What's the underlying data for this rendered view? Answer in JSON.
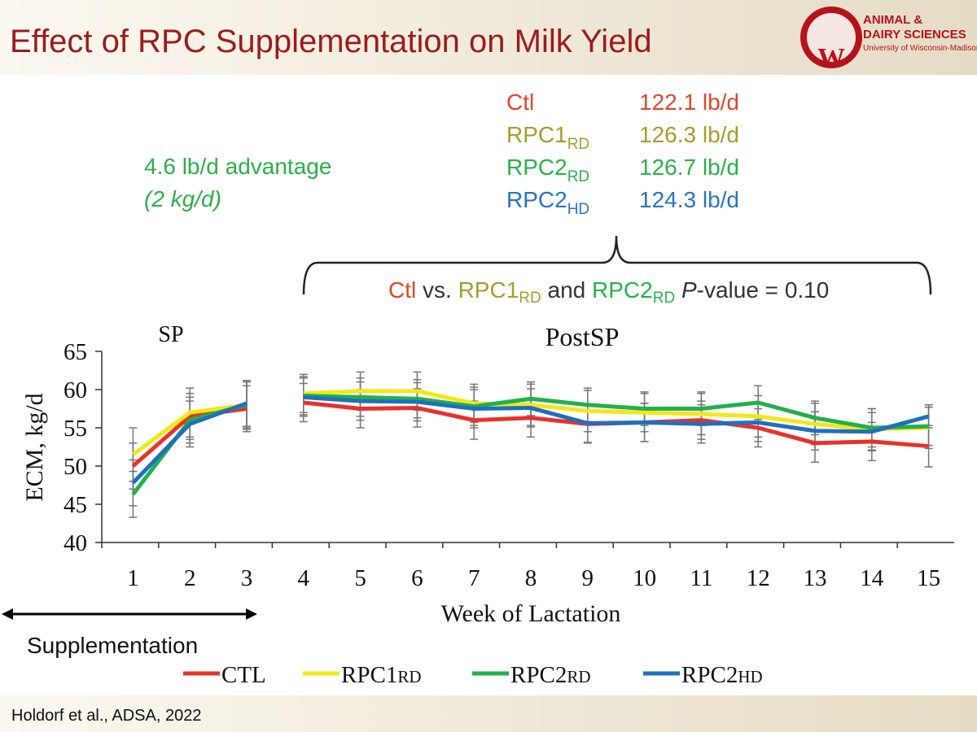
{
  "slide": {
    "title": "Effect of RPC Supplementation on Milk Yield",
    "logo": {
      "line1": "ANIMAL &",
      "line2": "DAIRY SCIENCES",
      "line3": "University of Wisconsin-Madison",
      "mark": "W"
    },
    "advantage": {
      "line1": "4.6 lb/d advantage",
      "line2": "(2 kg/d)"
    },
    "yields": [
      {
        "label": "Ctl",
        "value": "122.1 lb/d",
        "color": "#e0462c"
      },
      {
        "label": "RPC1",
        "sub": "RD",
        "value": "126.3 lb/d",
        "color": "#a89c2c"
      },
      {
        "label": "RPC2",
        "sub": "RD",
        "value": "126.7 lb/d",
        "color": "#2cb04a"
      },
      {
        "label": "RPC2",
        "sub": "HD",
        "value": "124.3 lb/d",
        "color": "#2a73c0"
      }
    ],
    "pvalue": {
      "ctl": "Ctl",
      "vs": "vs.",
      "rpc1": "RPC1",
      "rpc1_sub": "RD",
      "and": "and",
      "rpc2": "RPC2",
      "rpc2_sub": "RD",
      "p": "P",
      "rest": "-value = 0.10"
    },
    "supplementation": "Supplementation",
    "footer": "Holdorf et al., ADSA, 2022"
  },
  "chart_data": {
    "type": "line",
    "x_label": "Week of Lactation",
    "y_label": "ECM, kg/d",
    "annotations": [
      "SP",
      "PostSP"
    ],
    "categories": [
      1,
      2,
      3,
      4,
      5,
      6,
      7,
      8,
      9,
      10,
      11,
      12,
      13,
      14,
      15
    ],
    "break_after": 3,
    "ylim": [
      40,
      65
    ],
    "yticks": [
      40,
      45,
      50,
      55,
      60,
      65
    ],
    "series": [
      {
        "name": "CTL",
        "color": "#e8312a",
        "values": [
          50.0,
          56.5,
          57.5,
          58.3,
          57.5,
          57.6,
          56.0,
          56.3,
          55.5,
          55.7,
          56.0,
          55.0,
          53.0,
          53.2,
          52.6
        ],
        "errors": [
          3.0,
          3.0,
          3.0,
          2.5,
          2.5,
          2.5,
          2.5,
          2.5,
          2.5,
          2.5,
          2.5,
          2.5,
          2.5,
          2.5,
          2.7
        ]
      },
      {
        "name": "RPC1",
        "sub": "RD",
        "color": "#f2e818",
        "values": [
          51.5,
          57.0,
          58.0,
          59.5,
          59.8,
          59.8,
          58.2,
          58.0,
          57.2,
          57.0,
          56.8,
          56.5,
          55.5,
          54.8,
          55.0
        ],
        "errors": [
          3.5,
          3.2,
          3.2,
          2.5,
          2.5,
          2.5,
          2.5,
          2.7,
          2.7,
          2.5,
          2.7,
          2.7,
          2.7,
          2.7,
          2.7
        ]
      },
      {
        "name": "RPC2",
        "sub": "RD",
        "color": "#22b04b",
        "values": [
          46.3,
          56.0,
          58.0,
          59.2,
          59.0,
          58.8,
          57.8,
          58.8,
          58.0,
          57.5,
          57.5,
          58.3,
          56.3,
          55.0,
          55.2
        ],
        "errors": [
          3.0,
          3.0,
          3.0,
          2.5,
          2.5,
          2.5,
          2.5,
          2.2,
          2.2,
          2.2,
          2.2,
          2.2,
          2.2,
          2.5,
          2.5
        ]
      },
      {
        "name": "RPC2",
        "sub": "HD",
        "color": "#1f6fbf",
        "values": [
          47.8,
          55.5,
          58.2,
          59.0,
          58.5,
          58.4,
          57.5,
          57.6,
          55.6,
          55.7,
          55.5,
          55.7,
          54.6,
          54.5,
          56.5
        ],
        "errors": [
          3.0,
          3.0,
          3.0,
          2.5,
          2.5,
          2.5,
          2.5,
          2.5,
          2.5,
          2.5,
          2.5,
          2.5,
          2.5,
          2.5,
          1.5
        ]
      }
    ]
  }
}
